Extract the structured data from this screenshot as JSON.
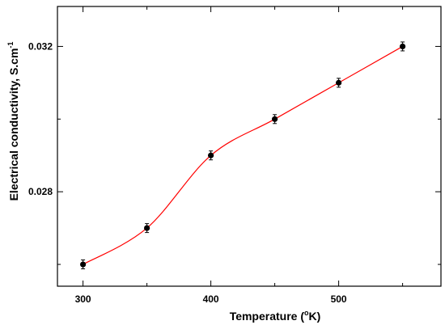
{
  "chart_data": {
    "type": "scatter",
    "xlabel": "Temperature (°K)",
    "xlabel_parts": {
      "main": "Temperature (",
      "sup": "o",
      "rest": "K)"
    },
    "ylabel": "Electrical conductivity, S.cm⁻¹",
    "ylabel_parts": {
      "main": "Electrical conductivity, S.cm",
      "sup": "-1"
    },
    "xlim": [
      280,
      580
    ],
    "ylim": [
      0.0254,
      0.0331
    ],
    "x_ticks": [
      300,
      400,
      500
    ],
    "x_tick_labels": [
      "300",
      "400",
      "500"
    ],
    "x_minor_ticks": [
      350,
      450,
      550
    ],
    "y_ticks": [
      0.028,
      0.032
    ],
    "y_tick_labels": [
      "0.028",
      "0.032"
    ],
    "y_minor_ticks": [
      0.026,
      0.03
    ],
    "grid": false,
    "series": [
      {
        "points": [
          {
            "x": 300,
            "y": 0.026
          },
          {
            "x": 350,
            "y": 0.027
          },
          {
            "x": 400,
            "y": 0.029
          },
          {
            "x": 450,
            "y": 0.03
          },
          {
            "x": 500,
            "y": 0.031
          },
          {
            "x": 550,
            "y": 0.032
          }
        ],
        "marker_color": "#000000",
        "fit_line_color": "#ff0000"
      }
    ]
  }
}
